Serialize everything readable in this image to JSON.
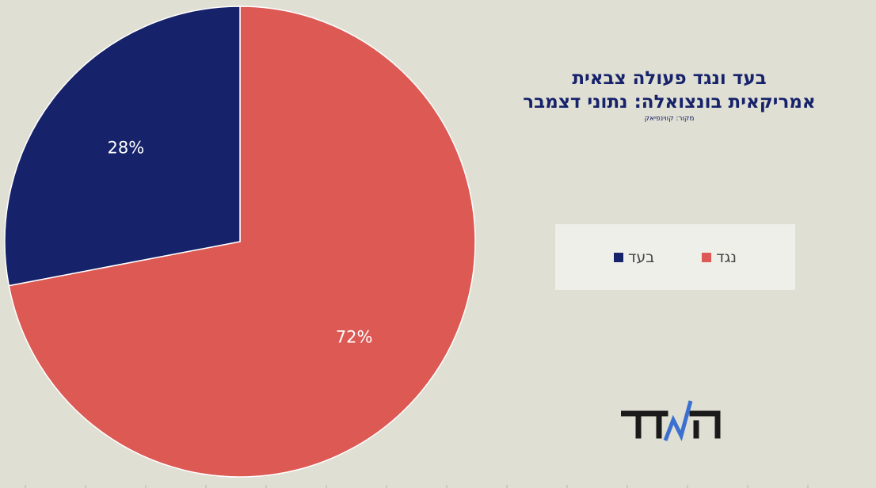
{
  "chart_data": {
    "type": "pie",
    "title_lines": [
      "בעד ונגד פעולה צבאית",
      "אמריקאית בונצואלה: נתוני דצמבר"
    ],
    "subtitle": "מקור: קווינפיאק",
    "slices": [
      {
        "name": "נגד",
        "value": 72,
        "label": "72%",
        "color": "#dc5954"
      },
      {
        "name": "בעד",
        "value": 28,
        "label": "28%",
        "color": "#16226a"
      }
    ],
    "legend_position": "right"
  },
  "legend": [
    {
      "label": "בעד",
      "color": "#16226a"
    },
    {
      "label": "נגד",
      "color": "#dc5954"
    }
  ],
  "logo": {
    "text": "הΛדד",
    "accent_color": "#3b6fd0"
  },
  "colors": {
    "background": "#e0dfd3",
    "legend_background": "#efefea",
    "title": "#16226a"
  }
}
